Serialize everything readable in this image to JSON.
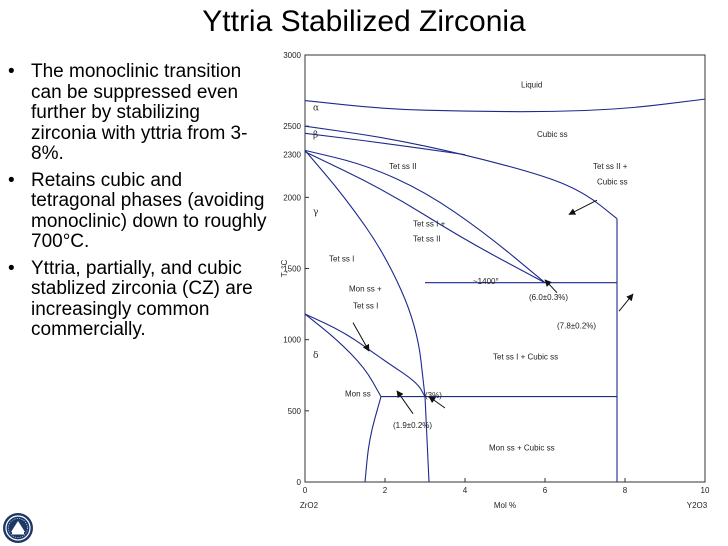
{
  "slide": {
    "title": "Yttria Stabilized Zirconia",
    "bullets": [
      "The monoclinic transition can be suppressed even further by stabilizing zirconia with yttria from 3-8%.",
      "Retains cubic and tetragonal phases (avoiding monoclinic) down to roughly 700°C.",
      "Yttria, partially, and cubic stablized zirconia (CZ) are increasingly common commercially."
    ],
    "bullet_symbol": "•",
    "logo_icon": "university-seal-icon"
  },
  "chart_data": {
    "type": "phase-diagram",
    "xlim": [
      0,
      10
    ],
    "ylim": [
      0,
      3000
    ],
    "x_ticks": [
      "0",
      "2",
      "4",
      "6",
      "8",
      "10"
    ],
    "y_ticks": [
      "0",
      "500",
      "1000",
      "1500",
      "2000",
      "2500",
      "3000"
    ],
    "xlabel": "Mol %",
    "ylabel": "T, °C",
    "x_left_label": "ZrO2",
    "x_right_label": "Y2O3",
    "y_extra_label": "2300",
    "colors": {
      "boundary": "#1c2a8c",
      "axis": "#333333",
      "text": "#222222"
    },
    "phase_labels": [
      {
        "text": "Liquid",
        "x": 5.4,
        "y": 2770
      },
      {
        "text": "Cubic ss",
        "x": 5.8,
        "y": 2425
      },
      {
        "text": "Tet ss II",
        "x": 2.1,
        "y": 2200
      },
      {
        "text": "Tet ss II +",
        "x": 7.2,
        "y": 2200
      },
      {
        "text": "Cubic ss",
        "x": 7.3,
        "y": 2090
      },
      {
        "text": "Tet ss I +",
        "x": 2.7,
        "y": 1795
      },
      {
        "text": "Tet ss II",
        "x": 2.7,
        "y": 1690
      },
      {
        "text": "Tet ss I",
        "x": 0.6,
        "y": 1550
      },
      {
        "text": "~1400°",
        "x": 4.2,
        "y": 1390
      },
      {
        "text": "Mon ss +",
        "x": 1.1,
        "y": 1340
      },
      {
        "text": "Tet ss I",
        "x": 1.2,
        "y": 1220
      },
      {
        "text": "Tet ss I + Cubic ss",
        "x": 4.7,
        "y": 860
      },
      {
        "text": "Mon ss",
        "x": 1.0,
        "y": 600
      },
      {
        "text": "Mon ss + Cubic ss",
        "x": 4.6,
        "y": 220
      }
    ],
    "greek_labels": [
      {
        "text": "α",
        "x": 0.2,
        "y": 2610
      },
      {
        "text": "β",
        "x": 0.2,
        "y": 2420
      },
      {
        "text": "γ",
        "x": 0.2,
        "y": 1880
      },
      {
        "text": "δ",
        "x": 0.2,
        "y": 870
      }
    ],
    "annotations": [
      {
        "text": "(6.0±0.3%)",
        "x": 5.6,
        "y": 1280
      },
      {
        "text": "(7.8±0.2%)",
        "x": 6.3,
        "y": 1080
      },
      {
        "text": "(3%)",
        "x": 3.0,
        "y": 590
      },
      {
        "text": "(1.9±0.2%)",
        "x": 2.2,
        "y": 380
      }
    ],
    "boundaries": [
      [
        [
          0,
          2680
        ],
        [
          2,
          2620
        ],
        [
          4,
          2605
        ],
        [
          6,
          2600
        ],
        [
          8,
          2620
        ],
        [
          10,
          2690
        ]
      ],
      [
        [
          0,
          2500
        ],
        [
          2,
          2420
        ],
        [
          4,
          2300
        ],
        [
          6,
          2150
        ],
        [
          7,
          2030
        ],
        [
          7.8,
          1850
        ]
      ],
      [
        [
          0,
          2450
        ],
        [
          2,
          2380
        ],
        [
          4,
          2300
        ]
      ],
      [
        [
          0,
          2330
        ],
        [
          1.5,
          2230
        ],
        [
          3,
          2040
        ],
        [
          4.5,
          1750
        ],
        [
          6,
          1400
        ]
      ],
      [
        [
          0,
          2330
        ],
        [
          1,
          2000
        ],
        [
          2,
          1600
        ],
        [
          2.8,
          1100
        ],
        [
          3.0,
          600
        ]
      ],
      [
        [
          0,
          2320
        ],
        [
          2,
          2050
        ],
        [
          4,
          1700
        ],
        [
          6,
          1400
        ]
      ],
      [
        [
          0,
          1180
        ],
        [
          1,
          1050
        ],
        [
          2,
          850
        ],
        [
          2.8,
          700
        ],
        [
          3.0,
          600
        ]
      ],
      [
        [
          0,
          1180
        ],
        [
          0.8,
          1000
        ],
        [
          1.5,
          800
        ],
        [
          1.9,
          600
        ]
      ],
      [
        [
          1.9,
          600
        ],
        [
          1.6,
          300
        ],
        [
          1.5,
          0
        ]
      ],
      [
        [
          3,
          600
        ],
        [
          3.05,
          300
        ],
        [
          3.1,
          0
        ]
      ],
      [
        [
          3,
          1400
        ],
        [
          7.8,
          1400
        ]
      ],
      [
        [
          1.9,
          600
        ],
        [
          7.8,
          600
        ]
      ],
      [
        [
          7.8,
          1400
        ],
        [
          7.8,
          0
        ]
      ],
      [
        [
          7.8,
          1850
        ],
        [
          7.8,
          1400
        ]
      ]
    ],
    "arrows": [
      [
        [
          6.3,
          1330
        ],
        [
          6.0,
          1420
        ]
      ],
      [
        [
          7.85,
          1200
        ],
        [
          8.2,
          1320
        ]
      ],
      [
        [
          7.3,
          1980
        ],
        [
          6.6,
          1880
        ]
      ],
      [
        [
          1.2,
          1120
        ],
        [
          1.6,
          920
        ]
      ],
      [
        [
          2.7,
          480
        ],
        [
          2.3,
          640
        ]
      ],
      [
        [
          3.5,
          520
        ],
        [
          3.1,
          600
        ]
      ]
    ]
  }
}
